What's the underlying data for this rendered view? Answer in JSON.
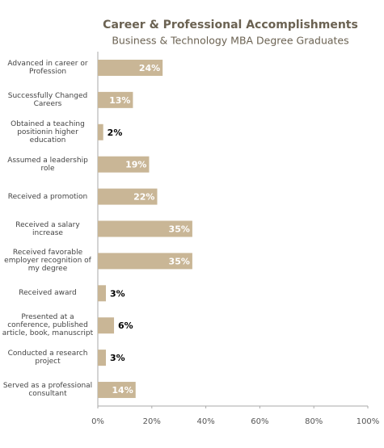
{
  "chart_data": {
    "type": "hbar",
    "title": "Career & Professional Accomplishments",
    "subtitle": "Business & Technology MBA Degree Graduates",
    "categories": [
      "Advanced in career or Profession",
      "Successfully Changed Careers",
      "Obtained a  teaching positionin higher education",
      "Assumed a leadership role",
      "Received a promotion",
      "Received a salary increase",
      "Received favorable employer recognition of my degree",
      "Received award",
      "Presented at a conference, published article, book, manuscript",
      "Conducted a research project",
      "Served as a professional consultant"
    ],
    "values": [
      24,
      13,
      2,
      19,
      22,
      35,
      35,
      3,
      6,
      3,
      14
    ],
    "value_labels": [
      "24%",
      "13%",
      "2%",
      "19%",
      "22%",
      "35%",
      "35%",
      "3%",
      "6%",
      "3%",
      "14%"
    ],
    "color": "#c9b696",
    "xlim": [
      0,
      100
    ],
    "xticks": [
      {
        "value": 0,
        "label": "0%"
      },
      {
        "value": 20,
        "label": "20%"
      },
      {
        "value": 40,
        "label": "40%"
      },
      {
        "value": 60,
        "label": "60%"
      },
      {
        "value": 80,
        "label": "80%"
      },
      {
        "value": 100,
        "label": "100%"
      }
    ]
  }
}
